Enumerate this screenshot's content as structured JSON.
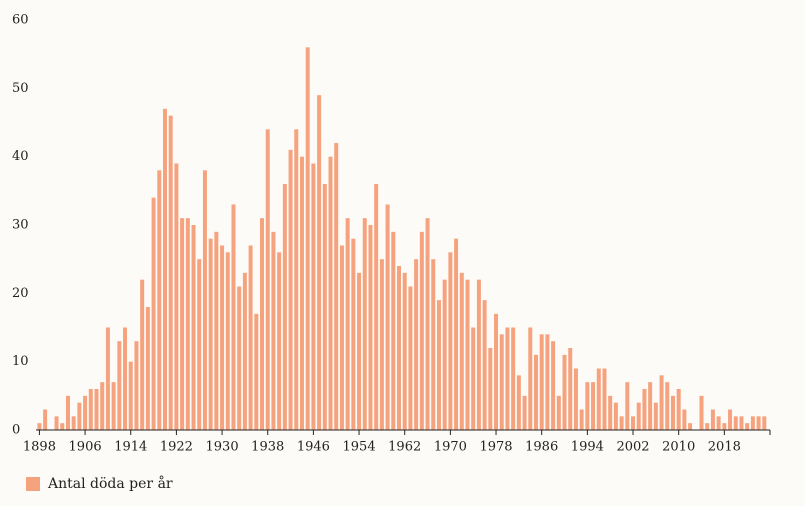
{
  "chart_data": {
    "type": "bar",
    "x": [
      1898,
      1899,
      1900,
      1901,
      1902,
      1903,
      1904,
      1905,
      1906,
      1907,
      1908,
      1909,
      1910,
      1911,
      1912,
      1913,
      1914,
      1915,
      1916,
      1917,
      1918,
      1919,
      1920,
      1921,
      1922,
      1923,
      1924,
      1925,
      1926,
      1927,
      1928,
      1929,
      1930,
      1931,
      1932,
      1933,
      1934,
      1935,
      1936,
      1937,
      1938,
      1939,
      1940,
      1941,
      1942,
      1943,
      1944,
      1945,
      1946,
      1947,
      1948,
      1949,
      1950,
      1951,
      1952,
      1953,
      1954,
      1955,
      1956,
      1957,
      1958,
      1959,
      1960,
      1961,
      1962,
      1963,
      1964,
      1965,
      1966,
      1967,
      1968,
      1969,
      1970,
      1971,
      1972,
      1973,
      1974,
      1975,
      1976,
      1977,
      1978,
      1979,
      1980,
      1981,
      1982,
      1983,
      1984,
      1985,
      1986,
      1987,
      1988,
      1989,
      1990,
      1991,
      1992,
      1993,
      1994,
      1995,
      1996,
      1997,
      1998,
      1999,
      2000,
      2001,
      2002,
      2003,
      2004,
      2005,
      2006,
      2007,
      2008,
      2009,
      2010,
      2011,
      2012,
      2013,
      2014,
      2015,
      2016,
      2017,
      2018,
      2019,
      2020,
      2021,
      2022,
      2023,
      2024,
      2025
    ],
    "series": [
      {
        "name": "Antal döda per år",
        "color": "#f5a27e",
        "values": [
          1,
          3,
          0,
          2,
          1,
          5,
          2,
          4,
          5,
          6,
          6,
          7,
          15,
          7,
          13,
          15,
          10,
          13,
          22,
          18,
          34,
          38,
          47,
          46,
          39,
          31,
          31,
          30,
          25,
          38,
          28,
          29,
          27,
          26,
          33,
          21,
          23,
          27,
          17,
          31,
          44,
          29,
          26,
          36,
          41,
          44,
          40,
          56,
          39,
          49,
          36,
          40,
          42,
          27,
          31,
          28,
          23,
          31,
          30,
          36,
          25,
          33,
          29,
          24,
          23,
          21,
          25,
          29,
          31,
          25,
          19,
          22,
          26,
          28,
          23,
          22,
          15,
          22,
          19,
          12,
          17,
          14,
          15,
          15,
          8,
          5,
          15,
          11,
          14,
          14,
          13,
          5,
          11,
          12,
          9,
          3,
          7,
          7,
          9,
          9,
          5,
          4,
          2,
          7,
          2,
          4,
          6,
          7,
          4,
          8,
          7,
          5,
          6,
          3,
          1,
          0,
          5,
          1,
          3,
          2,
          1,
          3,
          2,
          2,
          1,
          2,
          2,
          2
        ]
      }
    ],
    "xlim": [
      1897.4,
      2026
    ],
    "xticks": [
      1898,
      1906,
      1914,
      1922,
      1930,
      1938,
      1946,
      1954,
      1962,
      1970,
      1978,
      1986,
      1994,
      2002,
      2010,
      2018
    ],
    "ylim": [
      0,
      60
    ],
    "yticks": [
      0,
      10,
      20,
      30,
      40,
      50,
      60
    ],
    "grid": false
  }
}
